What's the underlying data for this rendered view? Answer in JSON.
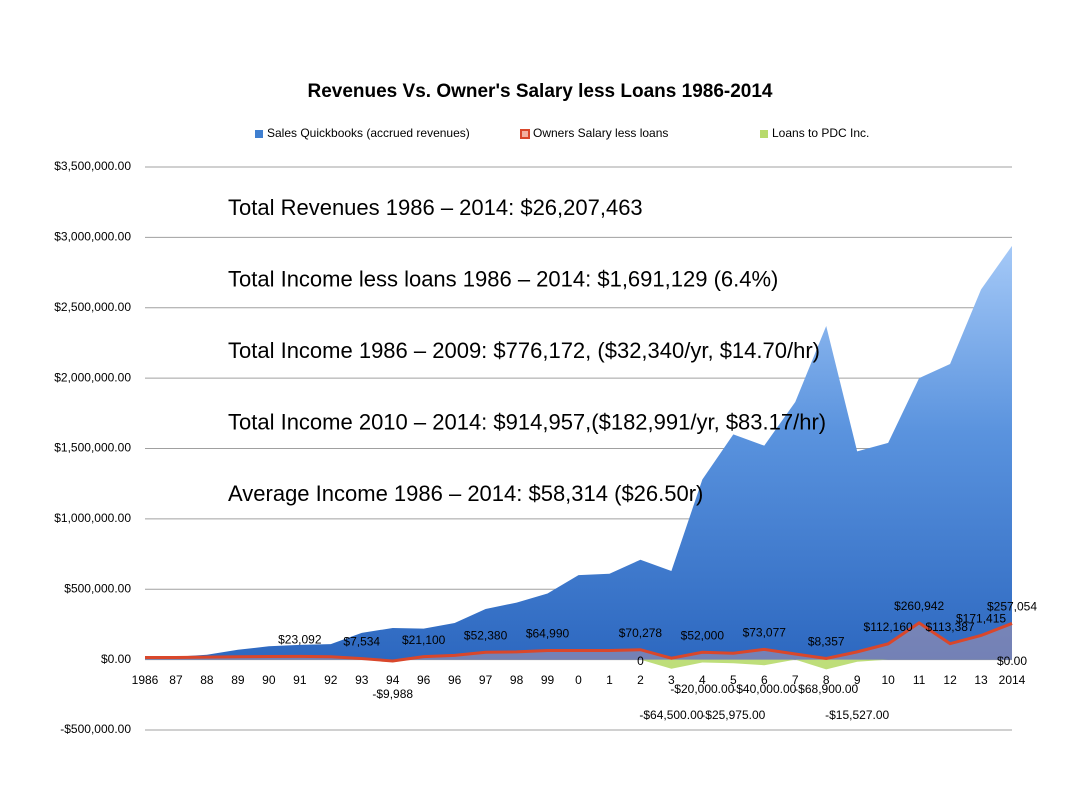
{
  "chart_data": {
    "type": "area",
    "title": "Revenues Vs. Owner's Salary less Loans  1986-2014",
    "annotations": [
      "Total Revenues 1986 – 2014:  $26,207,463",
      "Total Income less loans 1986 – 2014: $1,691,129  (6.4%)",
      "Total Income 1986 – 2009: $776,172, ($32,340/yr, $14.70/hr)",
      "Total Income 2010 – 2014: $914,957,($182,991/yr, $83.17/hr)",
      "Average Income 1986 – 2014: $58,314  ($26.50r)"
    ],
    "categories": [
      "1986",
      "87",
      "88",
      "89",
      "90",
      "91",
      "92",
      "93",
      "94",
      "96",
      "96",
      "97",
      "98",
      "99",
      "0",
      "1",
      "2",
      "3",
      "4",
      "5",
      "6",
      "7",
      "8",
      "9",
      "10",
      "11",
      "12",
      "13",
      "2014"
    ],
    "series": [
      {
        "name": "Sales Quickbooks (accrued revenues)",
        "color": "#3f7fd0",
        "values": [
          15000,
          20000,
          35000,
          70000,
          95000,
          105000,
          110000,
          190000,
          225000,
          220000,
          260000,
          360000,
          405000,
          470000,
          600000,
          610000,
          710000,
          630000,
          1280000,
          1600000,
          1520000,
          1830000,
          2370000,
          1480000,
          1540000,
          2000000,
          2100000,
          2630000,
          2940000
        ]
      },
      {
        "name": "Owners Salary less loans",
        "color": "#d9472b",
        "values": [
          15000,
          15000,
          18000,
          20000,
          22000,
          23092,
          20000,
          7534,
          -9988,
          21100,
          30000,
          52380,
          55000,
          64990,
          65000,
          65000,
          70278,
          10000,
          52000,
          45000,
          73077,
          40000,
          8357,
          55000,
          112160,
          260942,
          113387,
          171415,
          257054
        ],
        "value_labels": [
          null,
          null,
          null,
          null,
          null,
          "$23,092",
          null,
          "$7,534",
          "-$9,988",
          "$21,100",
          null,
          "$52,380",
          null,
          "$64,990",
          null,
          null,
          "$70,278",
          null,
          "$52,000",
          null,
          "$73,077",
          null,
          "$8,357",
          null,
          "$112,160",
          "$260,942",
          "$113,387",
          "$171,415",
          "$257,054"
        ]
      },
      {
        "name": "Loans to PDC Inc.",
        "color": "#b7da6c",
        "values": [
          0,
          0,
          0,
          0,
          0,
          0,
          0,
          0,
          0,
          0,
          0,
          0,
          0,
          0,
          0,
          0,
          0,
          -64500,
          -20000,
          -25975,
          -40000,
          0,
          -68900,
          -15527,
          0,
          0,
          0,
          0,
          0
        ],
        "value_labels": [
          null,
          null,
          null,
          null,
          null,
          null,
          null,
          null,
          null,
          null,
          null,
          null,
          null,
          null,
          null,
          null,
          "0",
          "-$64,500.00",
          "-$20,000.00",
          "-$25,975.00",
          "-$40,000.00",
          null,
          "-$68,900.00",
          "-$15,527.00",
          null,
          null,
          null,
          null,
          "$0.00"
        ]
      }
    ],
    "ylim": [
      -500000,
      3500000
    ],
    "yticks": [
      {
        "value": -500000,
        "label": "-$500,000.00"
      },
      {
        "value": 0,
        "label": "$0.00"
      },
      {
        "value": 500000,
        "label": "$500,000.00"
      },
      {
        "value": 1000000,
        "label": "$1,000,000.00"
      },
      {
        "value": 1500000,
        "label": "$1,500,000.00"
      },
      {
        "value": 2000000,
        "label": "$2,000,000.00"
      },
      {
        "value": 2500000,
        "label": "$2,500,000.00"
      },
      {
        "value": 3000000,
        "label": "$3,000,000.00"
      },
      {
        "value": 3500000,
        "label": "$3,500,000.00"
      }
    ],
    "grid": true,
    "legend": "top"
  }
}
